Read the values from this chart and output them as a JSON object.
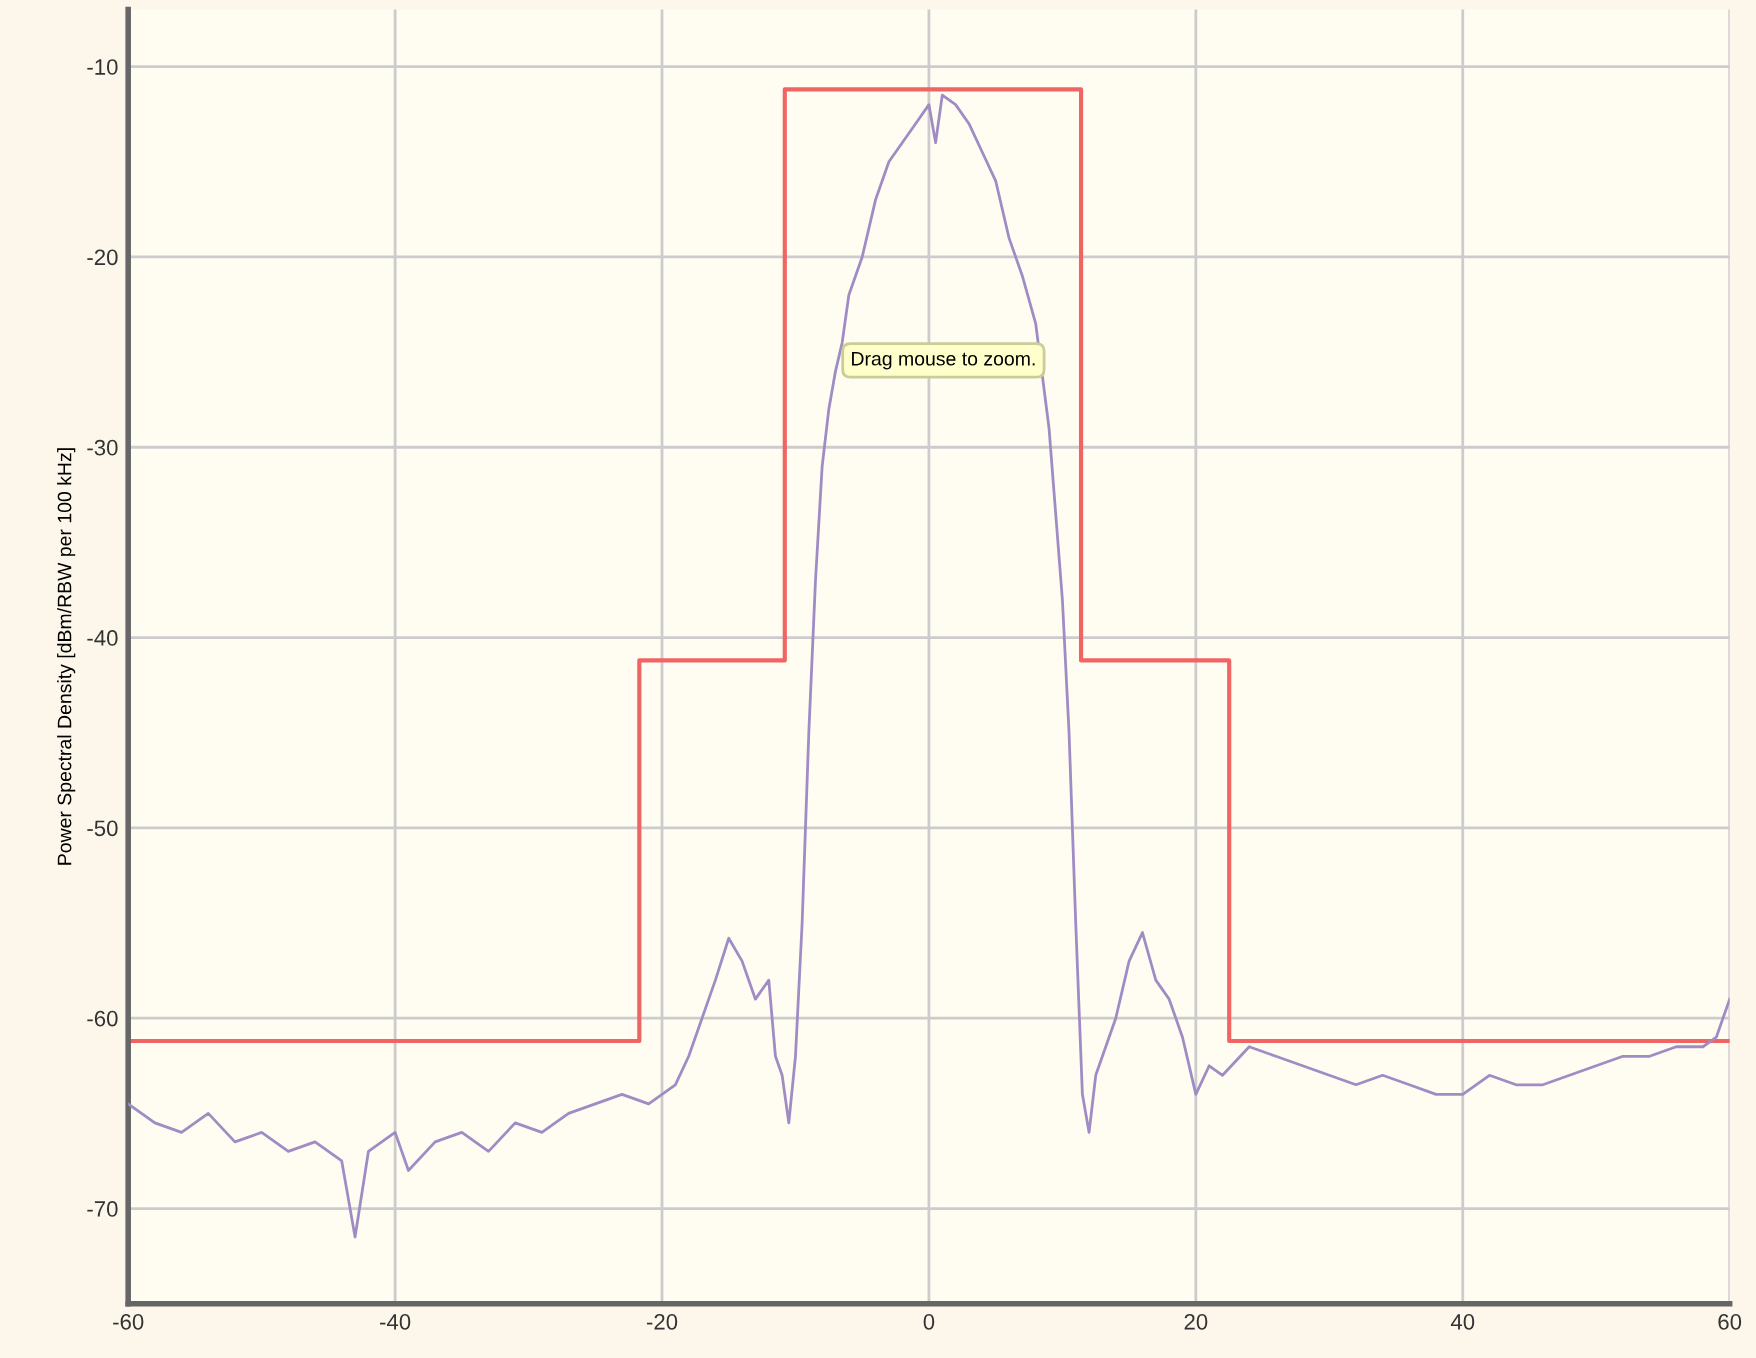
{
  "chart_data": {
    "type": "line",
    "ylabel": "Power Spectral Density [dBm/RBW per 100 kHz]",
    "xlim": [
      -60,
      60
    ],
    "xticks": [
      -60,
      -40,
      -20,
      0,
      20,
      40,
      60
    ],
    "ylim": [
      -75,
      -7
    ],
    "yticks": [
      -10,
      -20,
      -30,
      -40,
      -50,
      -60,
      -70
    ],
    "grid": true,
    "legend": false,
    "marker": "none",
    "line_style": "solid",
    "annotations": [
      "Drag mouse to zoom."
    ],
    "series": [
      {
        "type": "step",
        "color": "#f06464",
        "x": [
          -60,
          -21.7,
          -10.8,
          11.4,
          22.5,
          60
        ],
        "values": [
          -61.2,
          -41.2,
          -11.2,
          -41.2,
          -61.2,
          -61.2
        ]
      },
      {
        "color": "#a08cc4",
        "x": [
          -60,
          -58,
          -56,
          -54,
          -52,
          -50,
          -48,
          -46,
          -44,
          -43,
          -42,
          -40,
          -39,
          -37,
          -35,
          -33,
          -31,
          -29,
          -27,
          -25,
          -23,
          -21,
          -19,
          -18,
          -17,
          -16,
          -15,
          -14,
          -13,
          -12,
          -11.5,
          -11,
          -10.5,
          -10,
          -9.5,
          -9,
          -8.5,
          -8,
          -7.5,
          -7,
          -6.5,
          -6,
          -5,
          -4,
          -3,
          -2,
          -1,
          0,
          0.5,
          1,
          2,
          3,
          4,
          5,
          6,
          7,
          8,
          9,
          10,
          10.5,
          11,
          11.5,
          12,
          12.5,
          13,
          14,
          15,
          16,
          17,
          18,
          19,
          20,
          21,
          22,
          24,
          26,
          28,
          30,
          32,
          34,
          36,
          38,
          40,
          42,
          44,
          46,
          48,
          50,
          52,
          54,
          56,
          58,
          59,
          60
        ],
        "values": [
          -64.5,
          -65.5,
          -66,
          -65,
          -66.5,
          -66,
          -67,
          -66.5,
          -67.5,
          -71.5,
          -67,
          -66,
          -68,
          -66.5,
          -66,
          -67,
          -65.5,
          -66,
          -65,
          -64.5,
          -64,
          -64.5,
          -63.5,
          -62,
          -60,
          -58,
          -55.8,
          -57,
          -59,
          -58,
          -62,
          -63,
          -65.5,
          -62,
          -55,
          -45,
          -37,
          -31,
          -28,
          -26,
          -24.5,
          -22,
          -20,
          -17,
          -15,
          -14,
          -13,
          -12,
          -14,
          -11.5,
          -12,
          -13,
          -14.5,
          -16,
          -19,
          -21,
          -23.5,
          -29,
          -38,
          -45,
          -55,
          -64,
          -66,
          -63,
          -62,
          -60,
          -57,
          -55.5,
          -58,
          -59,
          -61,
          -64,
          -62.5,
          -63,
          -61.5,
          -62,
          -62.5,
          -63,
          -63.5,
          -63,
          -63.5,
          -64,
          -64,
          -63,
          -63.5,
          -63.5,
          -63,
          -62.5,
          -62,
          -62,
          -61.5,
          -61.5,
          -61,
          -59
        ]
      }
    ]
  }
}
